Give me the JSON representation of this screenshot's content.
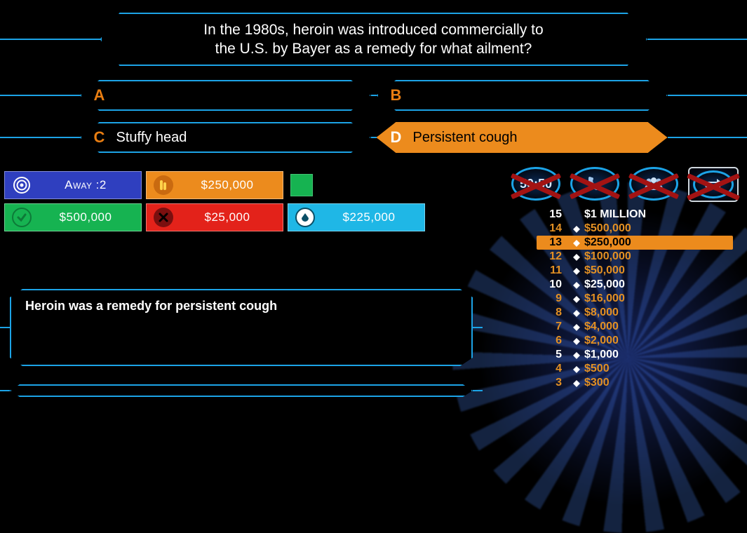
{
  "colors": {
    "stroke": "#1ca3e6",
    "highlight": "#ec8b1d",
    "answer_letter": "#e97e12",
    "ladder_reg": "#e39023",
    "ladder_milestone": "#ffffff",
    "tile_blue": "#2f3fbf",
    "tile_orange": "#ec8b1d",
    "tile_green": "#16b351",
    "tile_red": "#e3221a",
    "tile_cyan": "#1fb7e6",
    "lifeline_x": "#a31313"
  },
  "question": {
    "line1": "In the 1980s, heroin was introduced commercially to",
    "line2": "the U.S. by Bayer as a remedy for what ailment?"
  },
  "answers": {
    "A": {
      "letter": "A",
      "text": "",
      "highlight": false
    },
    "B": {
      "letter": "B",
      "text": "",
      "highlight": false
    },
    "C": {
      "letter": "C",
      "text": "Stuffy head",
      "highlight": false
    },
    "D": {
      "letter": "D",
      "text": "Persistent cough",
      "highlight": true
    }
  },
  "status": {
    "away": {
      "label": "Away :2",
      "bg": "#2f3fbf",
      "icon": "target"
    },
    "stake": {
      "label": "$250,000",
      "bg": "#ec8b1d",
      "icon": "coins"
    },
    "indicator": {
      "color": "#16b351"
    },
    "bank": {
      "label": "$500,000",
      "bg": "#16b351",
      "icon": "check"
    },
    "wrong": {
      "label": "$25,000",
      "bg": "#e3221a",
      "icon": "cross"
    },
    "walk": {
      "label": "$225,000",
      "bg": "#1fb7e6",
      "icon": "drop"
    }
  },
  "lifelines": [
    {
      "name": "fifty-fifty",
      "label": "50:50",
      "used": true,
      "boxed": false
    },
    {
      "name": "phone",
      "label": "",
      "used": true,
      "boxed": false,
      "glyph": "phone"
    },
    {
      "name": "audience",
      "label": "",
      "used": true,
      "boxed": false,
      "glyph": "audience"
    },
    {
      "name": "switch",
      "label": "",
      "used": true,
      "boxed": true,
      "glyph": "switch"
    }
  ],
  "ladder": [
    {
      "n": "15",
      "amount": "$1 MILLION",
      "milestone": true,
      "current": false
    },
    {
      "n": "14",
      "amount": "$500,000",
      "milestone": false,
      "current": false
    },
    {
      "n": "13",
      "amount": "$250,000",
      "milestone": false,
      "current": true
    },
    {
      "n": "12",
      "amount": "$100,000",
      "milestone": false,
      "current": false
    },
    {
      "n": "11",
      "amount": "$50,000",
      "milestone": false,
      "current": false
    },
    {
      "n": "10",
      "amount": "$25,000",
      "milestone": true,
      "current": false
    },
    {
      "n": "9",
      "amount": "$16,000",
      "milestone": false,
      "current": false
    },
    {
      "n": "8",
      "amount": "$8,000",
      "milestone": false,
      "current": false
    },
    {
      "n": "7",
      "amount": "$4,000",
      "milestone": false,
      "current": false
    },
    {
      "n": "6",
      "amount": "$2,000",
      "milestone": false,
      "current": false
    },
    {
      "n": "5",
      "amount": "$1,000",
      "milestone": true,
      "current": false
    },
    {
      "n": "4",
      "amount": "$500",
      "milestone": false,
      "current": false
    },
    {
      "n": "3",
      "amount": "$300",
      "milestone": false,
      "current": false
    }
  ],
  "explain": "Heroin was a remedy for persistent cough"
}
